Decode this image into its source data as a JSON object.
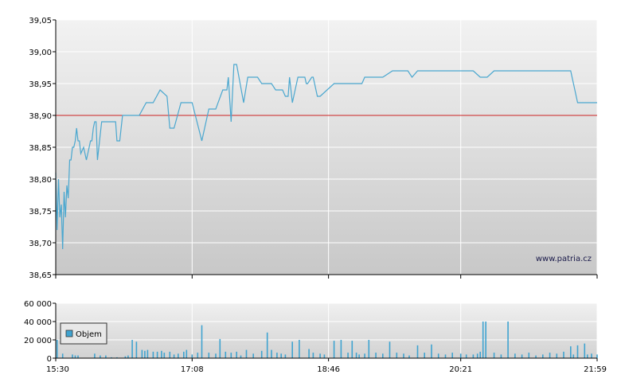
{
  "watermark": "www.patria.cz",
  "legend_label": "Objem",
  "colors": {
    "price_line": "#4aa7cf",
    "reference_line": "#cc2222",
    "volume_bar": "#3fa3d0"
  },
  "chart_data": [
    {
      "type": "line",
      "title": "",
      "xlabel": "",
      "ylabel": "",
      "ylim": [
        38.65,
        39.05
      ],
      "y_ticks": [
        "38,65",
        "38,70",
        "38,75",
        "38,80",
        "38,85",
        "38,90",
        "38,95",
        "39,00",
        "39,05"
      ],
      "x_ticks": [
        "15:30",
        "17:08",
        "18:46",
        "20:21",
        "21:59"
      ],
      "xlim": [
        "15:30",
        "21:59"
      ],
      "grid": true,
      "reference_line": 38.9,
      "series": [
        {
          "x": [
            "15:30",
            "15:31",
            "15:32",
            "15:33",
            "15:34",
            "15:35",
            "15:36",
            "15:37",
            "15:38",
            "15:39",
            "15:40",
            "15:41",
            "15:42",
            "15:43",
            "15:44",
            "15:45",
            "15:46",
            "15:47",
            "15:48",
            "15:50",
            "15:52",
            "15:54",
            "15:55",
            "15:56",
            "15:57",
            "15:58",
            "15:59",
            "16:00",
            "16:02",
            "16:03",
            "16:05",
            "16:07",
            "16:08",
            "16:10",
            "16:13",
            "16:14",
            "16:16",
            "16:18",
            "16:20",
            "16:25",
            "16:30",
            "16:35",
            "16:40",
            "16:45",
            "16:50",
            "16:52",
            "16:55",
            "17:00",
            "17:08",
            "17:15",
            "17:20",
            "17:25",
            "17:30",
            "17:33",
            "17:34",
            "17:36",
            "17:38",
            "17:40",
            "17:45",
            "17:48",
            "17:49",
            "17:52",
            "17:55",
            "17:58",
            "18:03",
            "18:05",
            "18:08",
            "18:13",
            "18:15",
            "18:17",
            "18:18",
            "18:20",
            "18:24",
            "18:29",
            "18:30",
            "18:31",
            "18:34",
            "18:35",
            "18:38",
            "18:40",
            "18:50",
            "18:55",
            "19:00",
            "19:05",
            "19:10",
            "19:12",
            "19:15",
            "19:20",
            "19:22",
            "19:23",
            "19:25",
            "19:32",
            "19:35",
            "19:37",
            "19:40",
            "19:43",
            "19:46",
            "19:50",
            "19:55",
            "20:00",
            "20:05",
            "20:10",
            "20:21",
            "20:26",
            "20:30",
            "20:35",
            "20:40",
            "20:45",
            "20:55",
            "21:05",
            "21:15",
            "21:25",
            "21:30",
            "21:35",
            "21:40",
            "21:45",
            "21:50",
            "21:52",
            "21:55",
            "21:59"
          ],
          "values": [
            38.81,
            38.72,
            38.8,
            38.74,
            38.76,
            38.69,
            38.78,
            38.74,
            38.79,
            38.77,
            38.83,
            38.83,
            38.85,
            38.85,
            38.86,
            38.88,
            38.86,
            38.86,
            38.84,
            38.85,
            38.83,
            38.85,
            38.86,
            38.86,
            38.88,
            38.89,
            38.89,
            38.83,
            38.87,
            38.89,
            38.89,
            38.89,
            38.89,
            38.89,
            38.89,
            38.86,
            38.86,
            38.9,
            38.9,
            38.9,
            38.9,
            38.92,
            38.92,
            38.94,
            38.93,
            38.88,
            38.88,
            38.92,
            38.92,
            38.86,
            38.91,
            38.91,
            38.94,
            38.94,
            38.96,
            38.89,
            38.98,
            38.98,
            38.92,
            38.96,
            38.96,
            38.96,
            38.96,
            38.95,
            38.95,
            38.95,
            38.94,
            38.94,
            38.93,
            38.93,
            38.96,
            38.92,
            38.96,
            38.96,
            38.95,
            38.95,
            38.96,
            38.96,
            38.93,
            38.93,
            38.95,
            38.95,
            38.95,
            38.95,
            38.95,
            38.96,
            38.96,
            38.96,
            38.96,
            38.96,
            38.96,
            38.97,
            38.97,
            38.97,
            38.97,
            38.97,
            38.96,
            38.97,
            38.97,
            38.97,
            38.97,
            38.97,
            38.97,
            38.97,
            38.97,
            38.96,
            38.96,
            38.97,
            38.97,
            38.97,
            38.97,
            38.97,
            38.97,
            38.97,
            38.97,
            38.92,
            38.92,
            38.92,
            38.92,
            38.92
          ]
        }
      ]
    },
    {
      "type": "bar",
      "title": "",
      "xlabel": "",
      "ylabel": "",
      "ylim": [
        0,
        60000
      ],
      "y_ticks": [
        "0",
        "20 000",
        "40 000",
        "60 000"
      ],
      "x_ticks": [
        "15:30",
        "17:08",
        "18:46",
        "20:21",
        "21:59"
      ],
      "xlim": [
        "15:30",
        "21:59"
      ],
      "grid": true,
      "legend": "top-left",
      "series": [
        {
          "name": "Objem",
          "x": [
            "15:31",
            "15:35",
            "15:42",
            "15:44",
            "15:46",
            "15:58",
            "16:02",
            "16:06",
            "16:10",
            "16:14",
            "16:20",
            "16:22",
            "16:25",
            "16:28",
            "16:32",
            "16:34",
            "16:36",
            "16:40",
            "16:43",
            "16:46",
            "16:48",
            "16:52",
            "16:55",
            "16:58",
            "17:02",
            "17:04",
            "17:08",
            "17:12",
            "17:15",
            "17:20",
            "17:25",
            "17:28",
            "17:32",
            "17:36",
            "17:40",
            "17:43",
            "17:47",
            "17:52",
            "17:58",
            "18:02",
            "18:05",
            "18:09",
            "18:12",
            "18:15",
            "18:20",
            "18:25",
            "18:32",
            "18:35",
            "18:40",
            "18:43",
            "18:50",
            "18:55",
            "19:00",
            "19:03",
            "19:06",
            "19:08",
            "19:12",
            "19:15",
            "19:20",
            "19:25",
            "19:30",
            "19:35",
            "19:40",
            "19:44",
            "19:50",
            "19:55",
            "20:00",
            "20:05",
            "20:10",
            "20:15",
            "20:21",
            "20:25",
            "20:30",
            "20:33",
            "20:35",
            "20:37",
            "20:39",
            "20:45",
            "20:50",
            "20:55",
            "21:00",
            "21:05",
            "21:10",
            "21:15",
            "21:20",
            "21:25",
            "21:30",
            "21:35",
            "21:40",
            "21:42",
            "21:45",
            "21:50",
            "21:52",
            "21:55",
            "21:59"
          ],
          "values": [
            20000,
            5000,
            4000,
            3000,
            3000,
            5000,
            3000,
            3000,
            1000,
            1000,
            2000,
            3000,
            20000,
            18000,
            9000,
            8000,
            9000,
            7000,
            7000,
            8000,
            6000,
            7000,
            4000,
            5000,
            7000,
            9000,
            4000,
            6000,
            36000,
            6000,
            5000,
            21000,
            7000,
            6000,
            7000,
            3000,
            9000,
            5000,
            8000,
            28000,
            9000,
            6000,
            5000,
            4000,
            18000,
            20000,
            10000,
            6000,
            5000,
            4000,
            19000,
            20000,
            6000,
            19000,
            6000,
            4000,
            5000,
            20000,
            6000,
            5000,
            18000,
            6000,
            5000,
            3000,
            14000,
            6000,
            15000,
            5000,
            4000,
            6000,
            5000,
            4000,
            4000,
            5000,
            7000,
            40000,
            40000,
            6000,
            4000,
            40000,
            5000,
            4000,
            6000,
            3000,
            4000,
            6000,
            5000,
            7000,
            13000,
            4000,
            14000,
            16000,
            4000,
            5000,
            4000
          ]
        }
      ]
    }
  ]
}
